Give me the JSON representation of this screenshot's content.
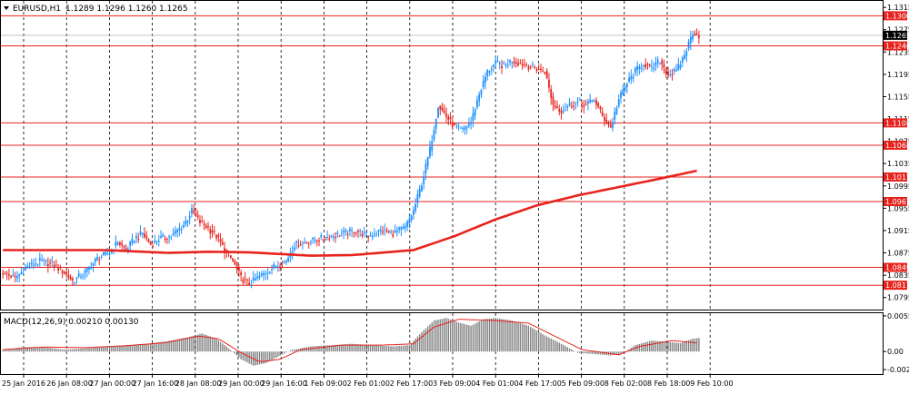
{
  "chart_data": [
    {
      "type": "candlestick",
      "symbol": "EURUSD,H1",
      "ohlc_header": "1.1289 1.1296 1.1260 1.1265",
      "bid_price_label": "1.1265",
      "ylim": [
        1.0775,
        1.1325
      ],
      "y_ticks": [
        "1.1315",
        "1.1275",
        "1.1235",
        "1.1195",
        "1.1155",
        "1.1115",
        "1.1075",
        "1.1035",
        "1.0995",
        "1.0955",
        "1.0915",
        "1.0875",
        "1.0835",
        "1.0795"
      ],
      "x_labels": [
        "25 Jan 2016",
        "26 Jan 08:00",
        "27 Jan 00:00",
        "27 Jan 16:00",
        "28 Jan 08:00",
        "29 Jan 00:00",
        "29 Jan 16:00",
        "1 Feb 09:00",
        "2 Feb 01:00",
        "2 Feb 17:00",
        "3 Feb 09:00",
        "4 Feb 01:00",
        "4 Feb 17:00",
        "5 Feb 09:00",
        "8 Feb 02:00",
        "8 Feb 18:00",
        "9 Feb 10:00"
      ],
      "levels": [
        {
          "value": 1.13,
          "label": "1.1300"
        },
        {
          "value": 1.1246,
          "label": "1.1246"
        },
        {
          "value": 1.1108,
          "label": "1.1108"
        },
        {
          "value": 1.1068,
          "label": "1.1068"
        },
        {
          "value": 1.1011,
          "label": "1.1011"
        },
        {
          "value": 1.0967,
          "label": "1.0967"
        },
        {
          "value": 1.0849,
          "label": "1.0849"
        },
        {
          "value": 1.0817,
          "label": "1.0817"
        }
      ],
      "price_path": [
        [
          0,
          1.084
        ],
        [
          6,
          1.083
        ],
        [
          12,
          1.085
        ],
        [
          18,
          1.086
        ],
        [
          24,
          1.0855
        ],
        [
          30,
          1.084
        ],
        [
          34,
          1.0825
        ],
        [
          40,
          1.084
        ],
        [
          46,
          1.0865
        ],
        [
          52,
          1.0875
        ],
        [
          56,
          1.0895
        ],
        [
          60,
          1.088
        ],
        [
          64,
          1.09
        ],
        [
          68,
          1.091
        ],
        [
          72,
          1.089
        ],
        [
          76,
          1.09
        ],
        [
          82,
          1.0905
        ],
        [
          88,
          1.0925
        ],
        [
          92,
          1.095
        ],
        [
          96,
          1.093
        ],
        [
          100,
          1.092
        ],
        [
          104,
          1.0905
        ],
        [
          108,
          1.088
        ],
        [
          112,
          1.086
        ],
        [
          116,
          1.083
        ],
        [
          120,
          1.082
        ],
        [
          126,
          1.0835
        ],
        [
          132,
          1.085
        ],
        [
          138,
          1.086
        ],
        [
          142,
          1.089
        ],
        [
          148,
          1.0895
        ],
        [
          154,
          1.09
        ],
        [
          160,
          1.0905
        ],
        [
          166,
          1.091
        ],
        [
          172,
          1.0915
        ],
        [
          178,
          1.0905
        ],
        [
          184,
          1.0915
        ],
        [
          190,
          1.091
        ],
        [
          196,
          1.092
        ],
        [
          200,
          1.095
        ],
        [
          204,
          1.1
        ],
        [
          208,
          1.106
        ],
        [
          212,
          1.114
        ],
        [
          216,
          1.112
        ],
        [
          220,
          1.11
        ],
        [
          224,
          1.1095
        ],
        [
          228,
          1.111
        ],
        [
          232,
          1.116
        ],
        [
          236,
          1.12
        ],
        [
          240,
          1.1215
        ],
        [
          244,
          1.121
        ],
        [
          248,
          1.122
        ],
        [
          252,
          1.1215
        ],
        [
          256,
          1.121
        ],
        [
          260,
          1.1205
        ],
        [
          264,
          1.12
        ],
        [
          268,
          1.114
        ],
        [
          272,
          1.113
        ],
        [
          276,
          1.114
        ],
        [
          280,
          1.1145
        ],
        [
          284,
          1.114
        ],
        [
          288,
          1.115
        ],
        [
          292,
          1.112
        ],
        [
          296,
          1.11
        ],
        [
          300,
          1.115
        ],
        [
          304,
          1.118
        ],
        [
          308,
          1.12
        ],
        [
          312,
          1.1215
        ],
        [
          316,
          1.1205
        ],
        [
          320,
          1.122
        ],
        [
          324,
          1.1195
        ],
        [
          328,
          1.12
        ],
        [
          332,
          1.123
        ],
        [
          336,
          1.127
        ],
        [
          339,
          1.1265
        ]
      ],
      "moving_average": [
        [
          0,
          1.088
        ],
        [
          50,
          1.088
        ],
        [
          80,
          1.0875
        ],
        [
          100,
          1.0877
        ],
        [
          120,
          1.0876
        ],
        [
          150,
          1.087
        ],
        [
          170,
          1.0871
        ],
        [
          200,
          1.088
        ],
        [
          220,
          1.0905
        ],
        [
          240,
          1.0935
        ],
        [
          260,
          1.096
        ],
        [
          280,
          1.0978
        ],
        [
          300,
          1.0993
        ],
        [
          320,
          1.1008
        ],
        [
          339,
          1.1023
        ]
      ],
      "macd": {
        "label": "MACD(12,26,9) 0.00210 0.00130",
        "y_ticks": [
          "0.00553",
          "0.00",
          "-0.0028"
        ],
        "ylim": [
          -0.0032,
          0.0058
        ],
        "histogram_path": [
          [
            0,
            0.0002
          ],
          [
            10,
            0.0007
          ],
          [
            20,
            0.0007
          ],
          [
            30,
            0.0003
          ],
          [
            40,
            0.0005
          ],
          [
            50,
            0.0008
          ],
          [
            60,
            0.001
          ],
          [
            70,
            0.0012
          ],
          [
            80,
            0.0016
          ],
          [
            90,
            0.0022
          ],
          [
            97,
            0.0028
          ],
          [
            104,
            0.002
          ],
          [
            110,
            0.0005
          ],
          [
            116,
            -0.0012
          ],
          [
            122,
            -0.0022
          ],
          [
            128,
            -0.0018
          ],
          [
            134,
            -0.0008
          ],
          [
            140,
            0.0002
          ],
          [
            150,
            0.0008
          ],
          [
            160,
            0.001
          ],
          [
            170,
            0.0012
          ],
          [
            180,
            0.001
          ],
          [
            190,
            0.0008
          ],
          [
            198,
            0.001
          ],
          [
            204,
            0.003
          ],
          [
            210,
            0.0048
          ],
          [
            216,
            0.0052
          ],
          [
            222,
            0.0045
          ],
          [
            228,
            0.004
          ],
          [
            234,
            0.005
          ],
          [
            240,
            0.0052
          ],
          [
            248,
            0.0048
          ],
          [
            256,
            0.004
          ],
          [
            264,
            0.0025
          ],
          [
            272,
            0.0012
          ],
          [
            280,
            -0.0002
          ],
          [
            288,
            -0.0004
          ],
          [
            296,
            -0.0006
          ],
          [
            302,
            -0.0003
          ],
          [
            308,
            0.001
          ],
          [
            316,
            0.0017
          ],
          [
            324,
            0.0015
          ],
          [
            330,
            0.0013
          ],
          [
            336,
            0.002
          ],
          [
            339,
            0.0021
          ]
        ],
        "signal_path": [
          [
            0,
            0.0003
          ],
          [
            20,
            0.0007
          ],
          [
            40,
            0.0006
          ],
          [
            60,
            0.0009
          ],
          [
            80,
            0.0014
          ],
          [
            95,
            0.0024
          ],
          [
            105,
            0.002
          ],
          [
            115,
            0.0
          ],
          [
            125,
            -0.0016
          ],
          [
            135,
            -0.0012
          ],
          [
            145,
            0.0003
          ],
          [
            165,
            0.001
          ],
          [
            185,
            0.001
          ],
          [
            200,
            0.0012
          ],
          [
            210,
            0.0038
          ],
          [
            222,
            0.005
          ],
          [
            240,
            0.0048
          ],
          [
            256,
            0.0044
          ],
          [
            270,
            0.0022
          ],
          [
            282,
            0.0003
          ],
          [
            300,
            -0.0005
          ],
          [
            310,
            0.0008
          ],
          [
            326,
            0.0017
          ],
          [
            339,
            0.0013
          ]
        ]
      }
    }
  ]
}
